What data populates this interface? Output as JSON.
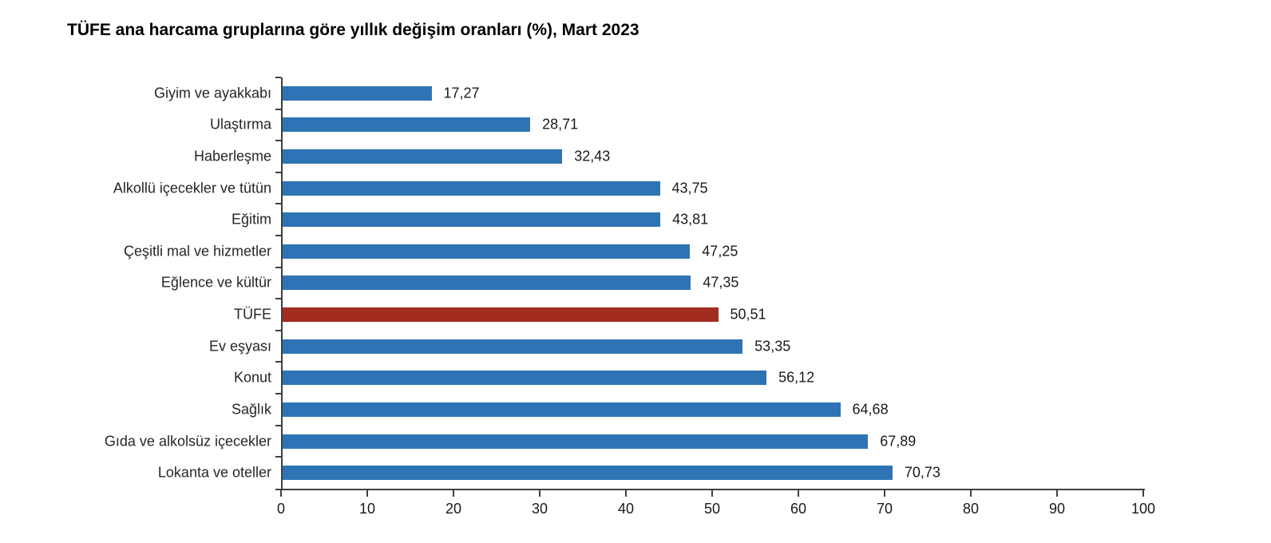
{
  "page": {
    "background": "#ffffff"
  },
  "chart_data": {
    "type": "bar",
    "orientation": "horizontal",
    "title": "TÜFE ana harcama gruplarına göre yıllık değişim oranları (%), Mart 2023",
    "categories": [
      "Giyim ve ayakkabı",
      "Ulaştırma",
      "Haberleşme",
      "Alkollü içecekler ve tütün",
      "Eğitim",
      "Çeşitli mal ve hizmetler",
      "Eğlence ve kültür",
      "TÜFE",
      "Ev eşyası",
      "Konut",
      "Sağlık",
      "Gıda ve alkolsüz içecekler",
      "Lokanta ve oteller"
    ],
    "values": [
      17.27,
      28.71,
      32.43,
      43.75,
      43.81,
      47.25,
      47.35,
      50.51,
      53.35,
      56.12,
      64.68,
      67.89,
      70.73
    ],
    "value_labels": [
      "17,27",
      "28,71",
      "32,43",
      "43,75",
      "43,81",
      "47,25",
      "47,35",
      "50,51",
      "53,35",
      "56,12",
      "64,68",
      "67,89",
      "70,73"
    ],
    "x_ticks": [
      "0",
      "10",
      "20",
      "30",
      "40",
      "50",
      "60",
      "70",
      "80",
      "90",
      "100"
    ],
    "xlim": [
      0,
      100
    ],
    "xlabel": "",
    "ylabel": "",
    "grid": "off",
    "legend": "none",
    "bar_color": "#2E74B5",
    "highlight_category": "TÜFE",
    "highlight_color": "#A32C21",
    "axis_color": "#404040"
  }
}
